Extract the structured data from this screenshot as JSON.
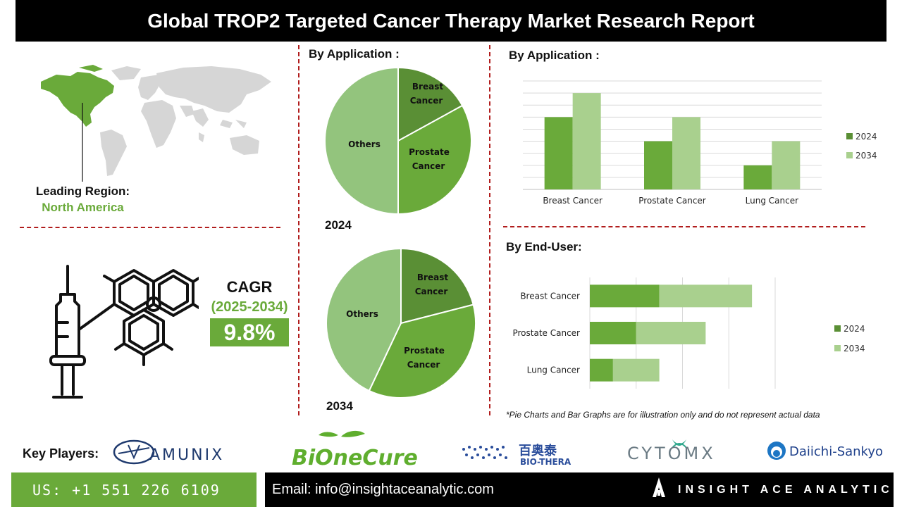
{
  "title": "Global TROP2 Targeted Cancer Therapy Market Research Report",
  "region": {
    "label": "Leading Region:",
    "value": "North America"
  },
  "cagr": {
    "label": "CAGR",
    "period": "(2025-2034)",
    "value": "9.8%"
  },
  "pies": {
    "title": "By  Application :",
    "pie_2024": {
      "year": "2024",
      "slices": [
        {
          "line1": "Breast",
          "line2": "Cancer"
        },
        {
          "line1": "Prostate",
          "line2": "Cancer"
        },
        {
          "line1": "Others",
          "line2": ""
        }
      ]
    },
    "pie_2034": {
      "year": "2034",
      "slices": [
        {
          "line1": "Breast",
          "line2": "Cancer"
        },
        {
          "line1": "Prostate",
          "line2": "Cancer"
        },
        {
          "line1": "Others",
          "line2": ""
        }
      ]
    }
  },
  "bar_title": "By   Application :",
  "hbar_title": "By End-User:",
  "footnote": "*Pie Charts and Bar Graphs are for illustration only and do not represent actual data",
  "key_players": {
    "label": "Key Players:",
    "logos": [
      "AMUNIX",
      "BiOneCure",
      "百奥泰",
      "BIO-THERA",
      "CYTOMX",
      "Daiichi-Sankyo"
    ]
  },
  "footer": {
    "phone": "US: +1 551 226 6109",
    "email": "Email: info@insightaceanalytic.com",
    "brand": "INSIGHT ACE ANALYTIC"
  },
  "colors": {
    "dark_green": "#5a8f35",
    "mid_green": "#6aaa3a",
    "light_green": "#a9d08e",
    "others_green": "#93c47d",
    "separator": "#b11d1d"
  },
  "chart_data": [
    {
      "type": "pie",
      "title": "2024",
      "categories": [
        "Breast Cancer",
        "Prostate Cancer",
        "Others"
      ],
      "values": [
        17,
        33,
        50
      ]
    },
    {
      "type": "pie",
      "title": "2034",
      "categories": [
        "Breast Cancer",
        "Prostate Cancer",
        "Others"
      ],
      "values": [
        21,
        36,
        43
      ]
    },
    {
      "type": "bar",
      "title": "By   Application :",
      "categories": [
        "Breast Cancer",
        "Prostate Cancer",
        "Lung Cancer"
      ],
      "series": [
        {
          "name": "2024",
          "values": [
            3,
            2,
            1
          ]
        },
        {
          "name": "2034",
          "values": [
            4,
            3,
            2
          ]
        }
      ],
      "ylim": [
        0,
        4.5
      ],
      "grid": true,
      "legend": "right"
    },
    {
      "type": "bar",
      "orientation": "horizontal",
      "stacked": true,
      "title": "By End-User:",
      "categories": [
        "Breast Cancer",
        "Prostate Cancer",
        "Lung Cancer"
      ],
      "series": [
        {
          "name": "2024",
          "values": [
            3,
            2,
            1
          ]
        },
        {
          "name": "2034",
          "values": [
            4,
            3,
            2
          ]
        }
      ],
      "xlim": [
        0,
        8
      ],
      "grid": true,
      "legend": "right"
    }
  ]
}
